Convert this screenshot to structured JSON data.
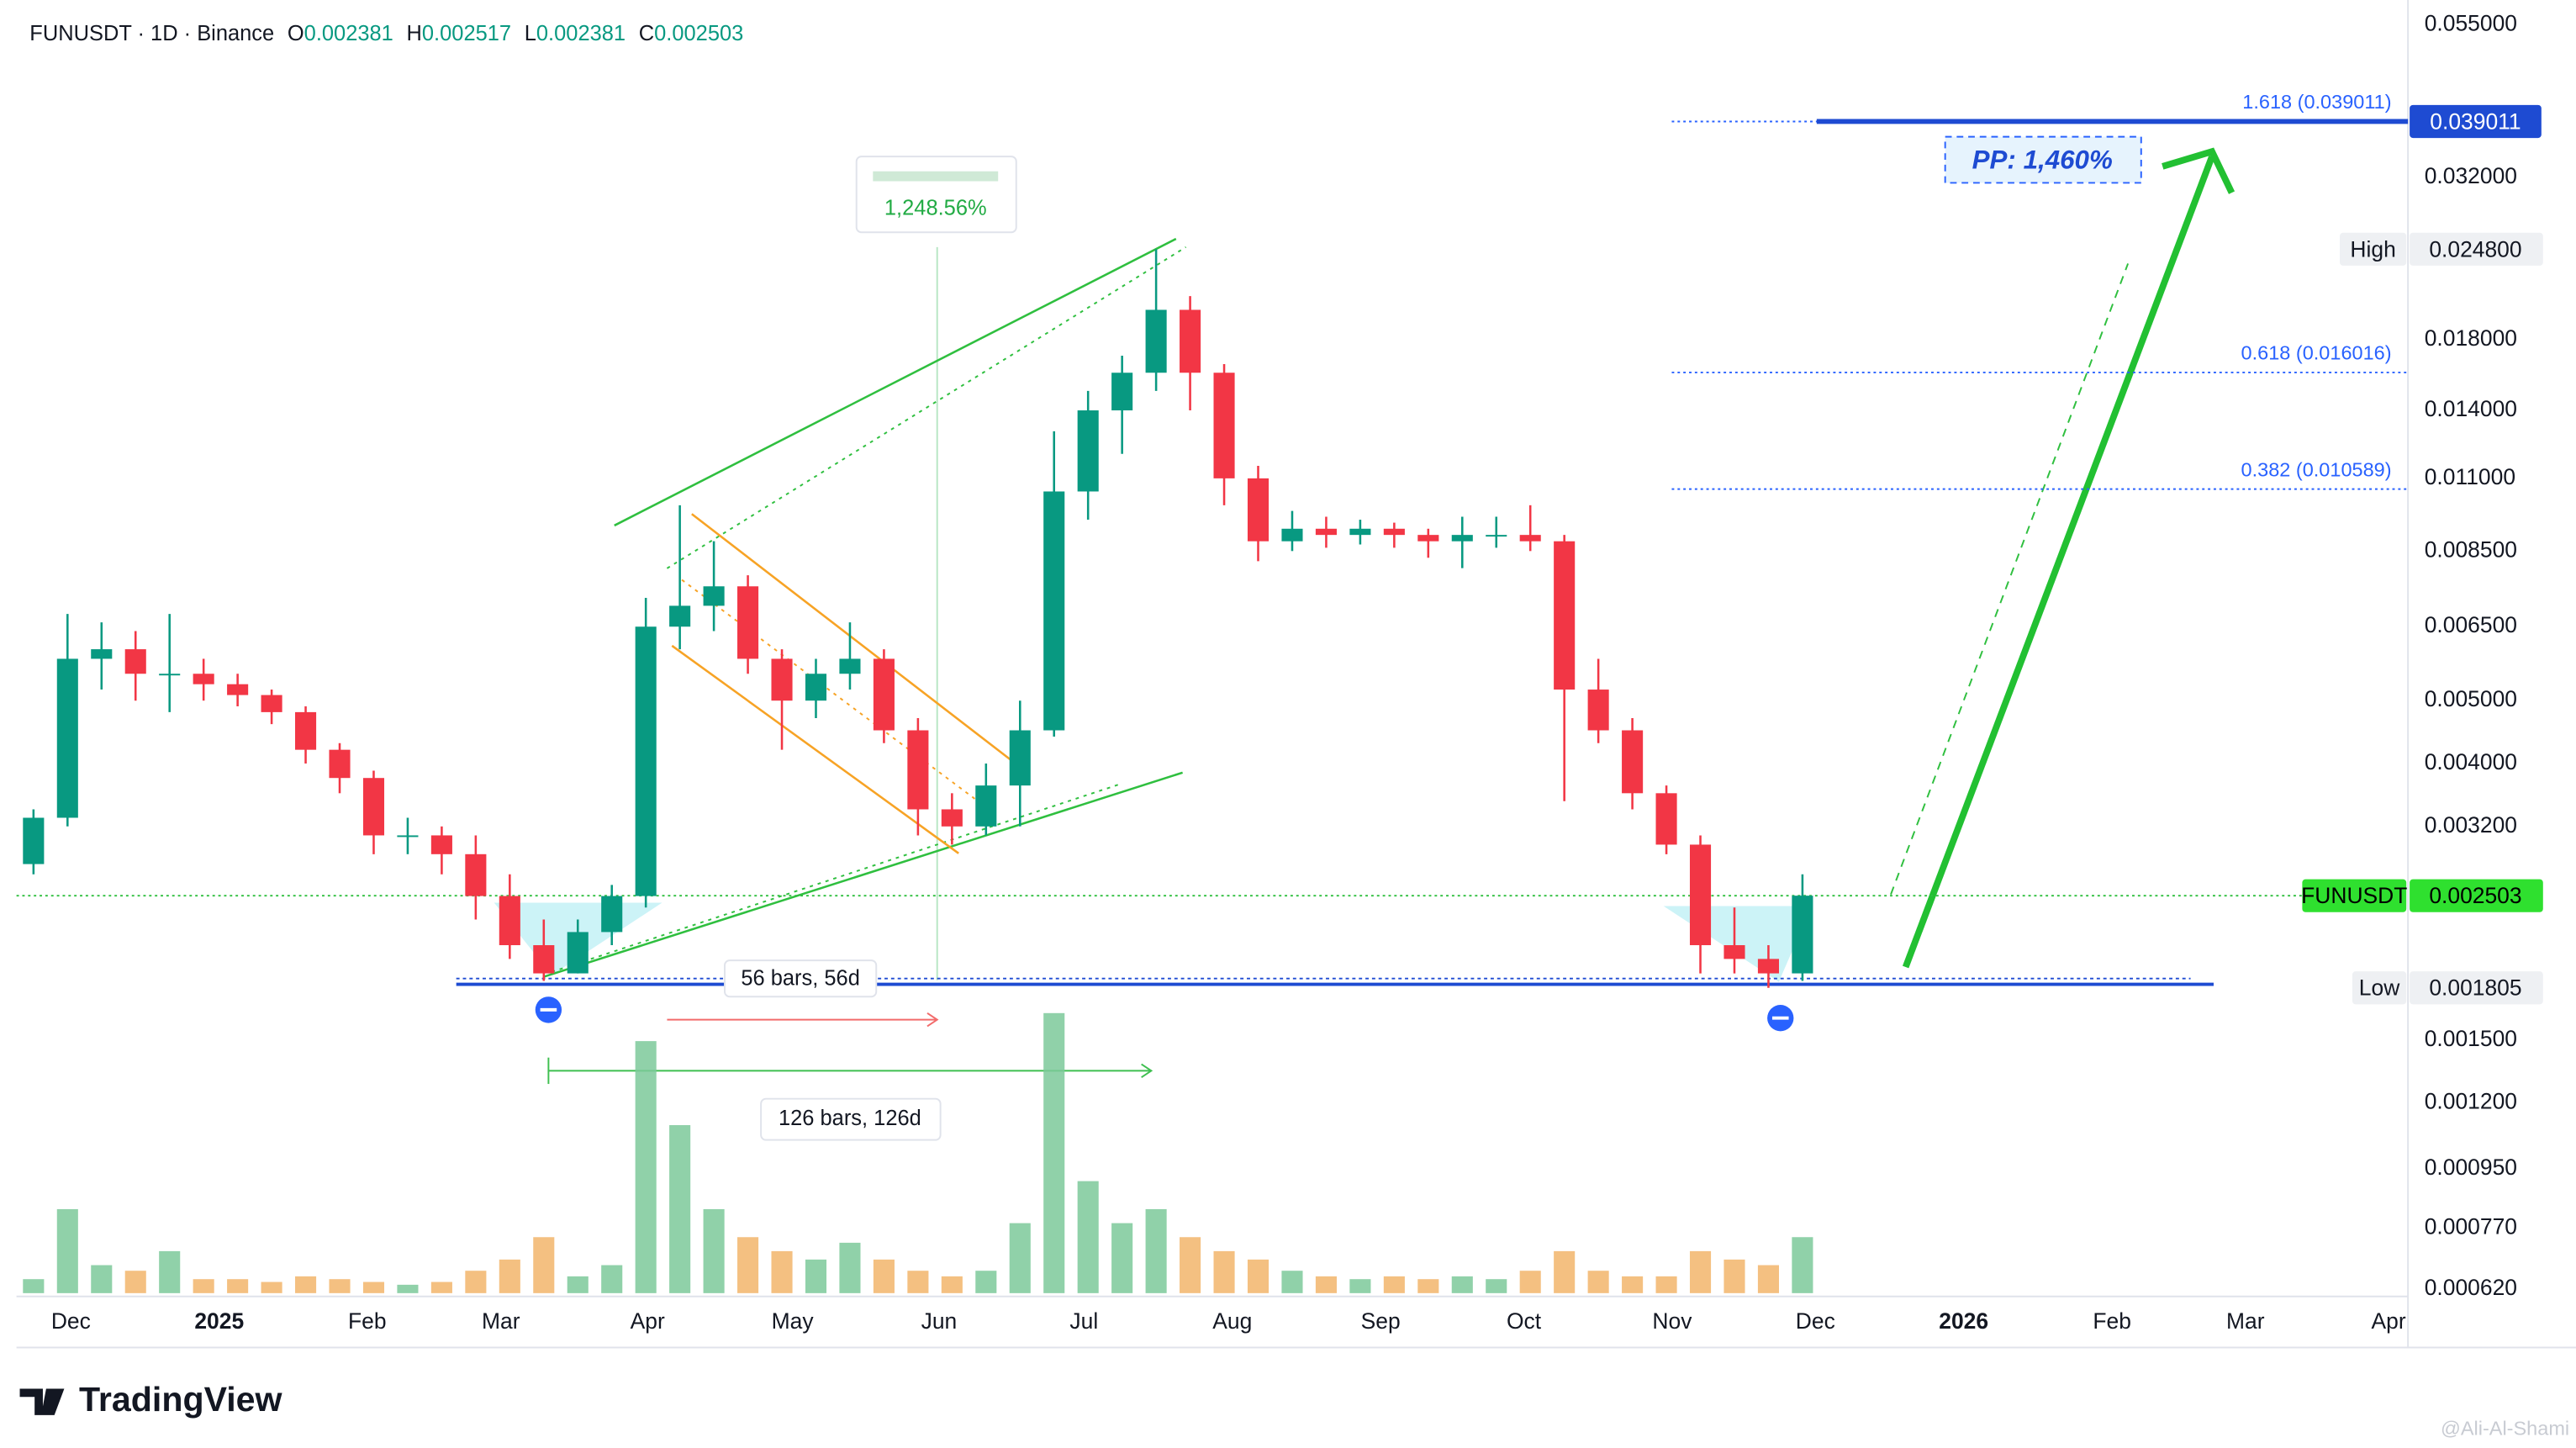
{
  "chart_data": {
    "type": "candlestick",
    "title": "FUNUSDT · 1D · Binance",
    "ohlc_header": [
      {
        "key": "O",
        "value": 0.002381
      },
      {
        "key": "H",
        "value": 0.002517
      },
      {
        "key": "L",
        "value": 0.002381
      },
      {
        "key": "C",
        "value": 0.002503
      }
    ],
    "log_scale": true,
    "grid": false,
    "up_color": "#089981",
    "down_color": "#f23645",
    "volume_up_color": "#7cc99a",
    "volume_down_color": "#f2b56b",
    "ylim": [
      0.000604,
      0.0583
    ],
    "yticks": [
      {
        "value": 0.055,
        "label": "0.055000"
      },
      {
        "value": 0.032,
        "label": "0.032000"
      },
      {
        "value": 0.018,
        "label": "0.018000"
      },
      {
        "value": 0.014,
        "label": "0.014000"
      },
      {
        "value": 0.011,
        "label": "0.011000"
      },
      {
        "value": 0.0085,
        "label": "0.008500"
      },
      {
        "value": 0.0065,
        "label": "0.006500"
      },
      {
        "value": 0.005,
        "label": "0.005000"
      },
      {
        "value": 0.004,
        "label": "0.004000"
      },
      {
        "value": 0.0032,
        "label": "0.003200"
      },
      {
        "value": 0.0015,
        "label": "0.001500"
      },
      {
        "value": 0.0012,
        "label": "0.001200"
      },
      {
        "value": 0.00095,
        "label": "0.000950"
      },
      {
        "value": 0.00077,
        "label": "0.000770"
      },
      {
        "value": 0.00062,
        "label": "0.000620"
      }
    ],
    "xlim": [
      0,
      70.3
    ],
    "xticks": [
      {
        "value": 1.6,
        "label": "Dec"
      },
      {
        "value": 5.96,
        "label": "2025"
      },
      {
        "value": 10.31,
        "label": "Feb"
      },
      {
        "value": 14.24,
        "label": "Mar"
      },
      {
        "value": 18.55,
        "label": "Apr"
      },
      {
        "value": 22.81,
        "label": "May"
      },
      {
        "value": 27.12,
        "label": "Jun"
      },
      {
        "value": 31.38,
        "label": "Jul"
      },
      {
        "value": 35.74,
        "label": "Aug"
      },
      {
        "value": 40.1,
        "label": "Sep"
      },
      {
        "value": 44.31,
        "label": "Oct"
      },
      {
        "value": 48.67,
        "label": "Nov"
      },
      {
        "value": 52.88,
        "label": "Dec"
      },
      {
        "value": 57.24,
        "label": "2026"
      },
      {
        "value": 61.6,
        "label": "Feb"
      },
      {
        "value": 65.52,
        "label": "Mar"
      },
      {
        "value": 69.73,
        "label": "Apr"
      }
    ],
    "candles": {
      "open": [
        0.0028,
        0.0033,
        0.0058,
        0.006,
        0.0055,
        0.0055,
        0.0053,
        0.0051,
        0.0048,
        0.0042,
        0.0038,
        0.0031,
        0.0031,
        0.0029,
        0.0025,
        0.0021,
        0.0019,
        0.0022,
        0.0025,
        0.0065,
        0.007,
        0.0075,
        0.0058,
        0.005,
        0.0055,
        0.0058,
        0.0045,
        0.0034,
        0.0032,
        0.0037,
        0.0045,
        0.0105,
        0.014,
        0.016,
        0.02,
        0.016,
        0.011,
        0.0088,
        0.0092,
        0.009,
        0.0092,
        0.009,
        0.0088,
        0.009,
        0.009,
        0.0088,
        0.0052,
        0.0045,
        0.0036,
        0.003,
        0.0021,
        0.002,
        0.0019
      ],
      "high": [
        0.0034,
        0.0068,
        0.0066,
        0.0064,
        0.0068,
        0.0058,
        0.0055,
        0.0052,
        0.0049,
        0.0043,
        0.0039,
        0.0033,
        0.0032,
        0.0031,
        0.0027,
        0.0023,
        0.0023,
        0.0026,
        0.0072,
        0.01,
        0.0088,
        0.0078,
        0.006,
        0.0058,
        0.0066,
        0.006,
        0.0047,
        0.0036,
        0.004,
        0.005,
        0.013,
        0.015,
        0.017,
        0.0248,
        0.021,
        0.0165,
        0.0115,
        0.0098,
        0.0096,
        0.0095,
        0.0094,
        0.0092,
        0.0096,
        0.0096,
        0.01,
        0.009,
        0.0058,
        0.0047,
        0.0037,
        0.0031,
        0.0024,
        0.0021,
        0.0027
      ],
      "low": [
        0.0027,
        0.0032,
        0.0052,
        0.005,
        0.0048,
        0.005,
        0.0049,
        0.0046,
        0.004,
        0.0036,
        0.0029,
        0.0029,
        0.0027,
        0.0023,
        0.002,
        0.00185,
        0.0019,
        0.0021,
        0.0024,
        0.006,
        0.0064,
        0.0055,
        0.0042,
        0.0047,
        0.0052,
        0.0043,
        0.0031,
        0.003,
        0.0031,
        0.0032,
        0.0044,
        0.0095,
        0.012,
        0.015,
        0.014,
        0.01,
        0.0082,
        0.0085,
        0.0086,
        0.0087,
        0.0086,
        0.0083,
        0.008,
        0.0086,
        0.0085,
        0.0035,
        0.0043,
        0.0034,
        0.0029,
        0.0019,
        0.0019,
        0.001805,
        0.00185
      ],
      "close": [
        0.0033,
        0.0058,
        0.006,
        0.0055,
        0.0055,
        0.0053,
        0.0051,
        0.0048,
        0.0042,
        0.0038,
        0.0031,
        0.0031,
        0.0029,
        0.0025,
        0.0021,
        0.0019,
        0.0022,
        0.0025,
        0.0065,
        0.007,
        0.0075,
        0.0058,
        0.005,
        0.0055,
        0.0058,
        0.0045,
        0.0034,
        0.0032,
        0.0037,
        0.0045,
        0.0105,
        0.014,
        0.016,
        0.02,
        0.016,
        0.011,
        0.0088,
        0.0092,
        0.009,
        0.0092,
        0.009,
        0.0088,
        0.009,
        0.009,
        0.0088,
        0.0052,
        0.0045,
        0.0036,
        0.003,
        0.0021,
        0.002,
        0.0019,
        0.002503
      ],
      "volume": [
        5,
        30,
        10,
        8,
        15,
        5,
        5,
        4,
        6,
        5,
        4,
        3,
        4,
        8,
        12,
        20,
        6,
        10,
        90,
        60,
        30,
        20,
        15,
        12,
        18,
        12,
        8,
        6,
        8,
        25,
        100,
        40,
        25,
        30,
        20,
        15,
        12,
        8,
        6,
        5,
        6,
        5,
        6,
        5,
        8,
        15,
        8,
        6,
        6,
        15,
        12,
        10,
        20
      ]
    },
    "fib_levels": [
      {
        "label": "1.618 (0.039011)",
        "value": 0.039011
      },
      {
        "label": "0.618 (0.016016)",
        "value": 0.016016
      },
      {
        "label": "0.382 (0.010589)",
        "value": 0.010589
      }
    ],
    "price_markers": [
      {
        "label": "High",
        "value": 0.0248,
        "value_label": "0.024800",
        "color": "#eef0f3",
        "text_color": "#131722"
      },
      {
        "label": "FUNUSDT",
        "value": 0.002503,
        "color": "#2fe02f",
        "text_color": "#000000"
      },
      {
        "label": "Low",
        "value": 0.001805,
        "color": "#eef0f3",
        "text_color": "#131722"
      }
    ],
    "annotations": {
      "gain": "1,248.56%",
      "bars_short": "56 bars, 56d",
      "bars_long": "126 bars, 126d",
      "target": "PP: 1,460%"
    },
    "branding": "TradingView",
    "watermark": "@Ali-Al-Shami"
  }
}
